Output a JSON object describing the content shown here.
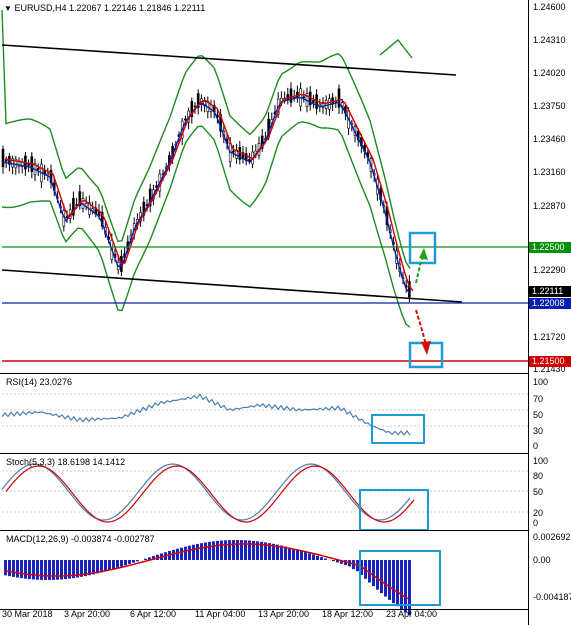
{
  "main": {
    "symbol_header": "EURUSD,H4  1.22067 1.22146 1.21846 1.22111",
    "price_ticks": [
      "1.24600",
      "1.24310",
      "1.24020",
      "1.23750",
      "1.23460",
      "1.23160",
      "1.22870",
      "1.22290",
      "1.21720",
      "1.21430"
    ],
    "price_tags": [
      {
        "text": "1.22500",
        "color": "#0a8f0a"
      },
      {
        "text": "1.22111",
        "color": "#000000"
      },
      {
        "text": "1.22008",
        "color": "#0a1fb0"
      },
      {
        "text": "1.21500",
        "color": "#d00000"
      }
    ]
  },
  "rsi": {
    "header": "RSI(14) 23.0276",
    "ticks": [
      "100",
      "70",
      "50",
      "30",
      "0"
    ]
  },
  "stoch": {
    "header": "Stoch(5,3,3) 18.6198 14.1412",
    "ticks": [
      "100",
      "80",
      "50",
      "20",
      "0"
    ]
  },
  "macd": {
    "header": "MACD(12,26,9) -0.003874 -0.002787",
    "ticks": [
      "0.002692",
      "0.00",
      "-0.004187"
    ]
  },
  "time_axis": [
    "30 Mar 2018",
    "3 Apr 20:00",
    "6 Apr 12:00",
    "11 Apr 04:00",
    "13 Apr 20:00",
    "18 Apr 12:00",
    "23 Apr 04:00"
  ],
  "colors": {
    "support": "#0a8f0a",
    "blue_line": "#0a1fb0",
    "target": "#d00000",
    "highlight": "#1e9bd7"
  }
}
